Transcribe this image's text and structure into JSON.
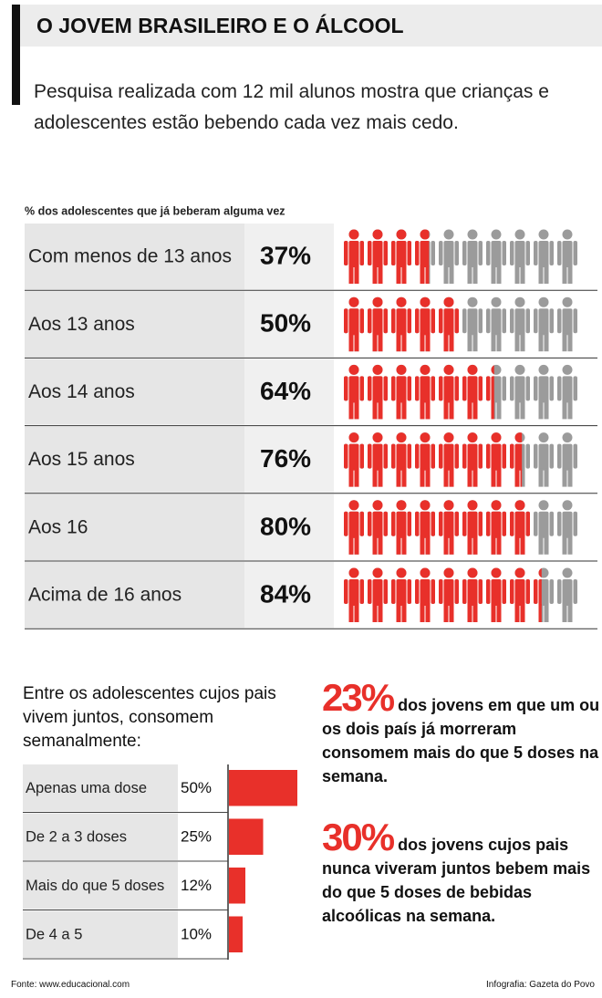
{
  "header": {
    "title": "O JOVEM BRASILEIRO E O ÁLCOOL",
    "subtitle": "Pesquisa realizada com 12 mil alunos mostra que crianças e adolescentes estão bebendo cada vez mais cedo."
  },
  "chart_data": [
    {
      "type": "pictogram",
      "title": "% dos adolescentes que já beberam alguma vez",
      "categories": [
        "Com menos de 13 anos",
        "Aos 13 anos",
        "Aos 14 anos",
        "Aos 15 anos",
        "Aos 16",
        "Acima de 16 anos"
      ],
      "values": [
        37,
        50,
        64,
        76,
        80,
        84
      ],
      "value_labels": [
        "37%",
        "50%",
        "64%",
        "76%",
        "80%",
        "84%"
      ],
      "color": "#e8302a",
      "empty_color": "#9b9b9b"
    },
    {
      "type": "hbar",
      "title": "Entre os adolescentes cujos pais vivem juntos, consomem semanalmente:",
      "categories": [
        "Apenas uma dose",
        "De 2 a 3 doses",
        "Mais do que 5 doses",
        "De 4 a 5"
      ],
      "values": [
        50,
        25,
        12,
        10
      ],
      "value_labels": [
        "50%",
        "25%",
        "12%",
        "10%"
      ],
      "color": "#e8302a"
    }
  ],
  "callouts": [
    {
      "figure": "23%",
      "text": "dos jovens em que um ou os dois país já morreram consomem mais do que 5 doses na semana."
    },
    {
      "figure": "30%",
      "text": "dos jovens cujos pais nunca viveram juntos bebem mais do que 5 doses de bebidas alcoólicas na semana."
    }
  ],
  "footer": {
    "source": "Fonte: www.educacional.com",
    "credit": "Infografia: Gazeta do Povo"
  }
}
